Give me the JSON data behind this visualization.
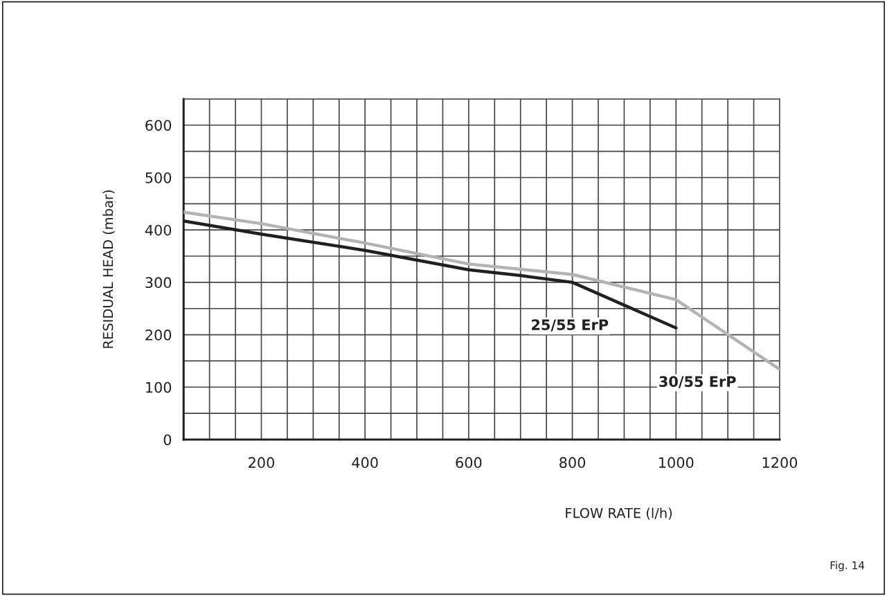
{
  "chart_data": {
    "type": "line",
    "xlabel": "FLOW RATE (l/h)",
    "ylabel": "RESIDUAL HEAD (mbar)",
    "series": [
      {
        "name": "25/55 ErP",
        "color": "#231f20",
        "x": [
          50,
          200,
          400,
          600,
          700,
          800,
          1000
        ],
        "values": [
          417,
          392,
          361,
          324,
          313,
          300,
          213
        ]
      },
      {
        "name": "30/55 ErP",
        "color": "#b3b3b3",
        "x": [
          50,
          200,
          400,
          600,
          700,
          800,
          1000,
          1200
        ],
        "values": [
          434,
          412,
          375,
          335,
          325,
          315,
          267,
          134
        ]
      }
    ],
    "xlim": [
      50,
      1200
    ],
    "xticks": [
      {
        "value": 100,
        "label": null
      },
      {
        "value": 150,
        "label": null
      },
      200,
      {
        "value": 250,
        "label": null
      },
      {
        "value": 300,
        "label": null
      },
      {
        "value": 350,
        "label": null
      },
      400,
      {
        "value": 450,
        "label": null
      },
      {
        "value": 500,
        "label": null
      },
      {
        "value": 550,
        "label": null
      },
      600,
      {
        "value": 650,
        "label": null
      },
      {
        "value": 700,
        "label": null
      },
      {
        "value": 750,
        "label": null
      },
      800,
      {
        "value": 850,
        "label": null
      },
      {
        "value": 900,
        "label": null
      },
      {
        "value": 950,
        "label": null
      },
      1000,
      {
        "value": 1050,
        "label": null
      },
      {
        "value": 1100,
        "label": null
      },
      {
        "value": 1150,
        "label": null
      },
      1200
    ],
    "ylim": [
      0,
      650
    ],
    "yticks": [
      0,
      {
        "value": 50,
        "label": null
      },
      100,
      {
        "value": 150,
        "label": null
      },
      200,
      {
        "value": 250,
        "label": null
      },
      300,
      {
        "value": 350,
        "label": null
      },
      400,
      {
        "value": 450,
        "label": null
      },
      500,
      {
        "value": 550,
        "label": null
      },
      600,
      {
        "value": 650,
        "label": null
      }
    ],
    "grid": true,
    "marker": "none",
    "line_style": "solid",
    "legend": false,
    "annotations": [
      "Fig. 14"
    ]
  }
}
